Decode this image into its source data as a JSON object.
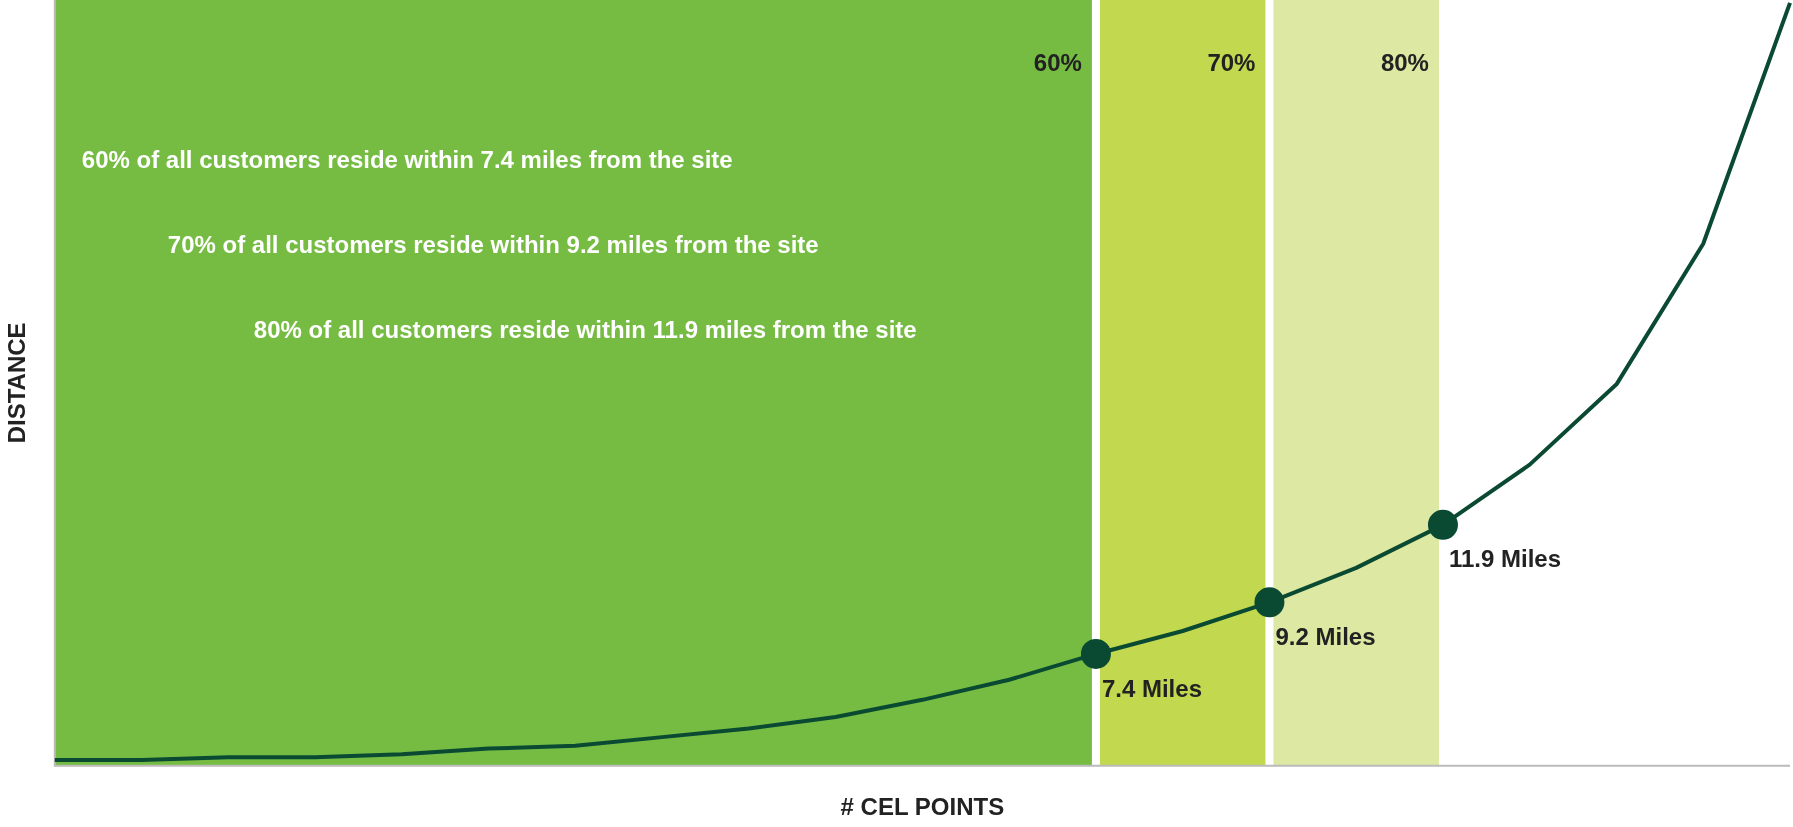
{
  "chart_data": {
    "type": "line",
    "xlabel": "# CEL POINTS",
    "ylabel": "DISTANCE",
    "ylim": [
      3.5,
      30.2
    ],
    "grid": false,
    "legend": false,
    "categories": [
      null,
      null,
      null,
      null,
      null,
      null,
      null,
      null,
      null,
      null,
      null,
      null,
      null,
      null,
      null,
      null,
      null,
      null,
      null,
      null,
      null
    ],
    "series": [
      {
        "color": "#0b4a32",
        "values": [
          3.7,
          3.7,
          3.8,
          3.8,
          3.9,
          4.1,
          4.2,
          4.5,
          4.8,
          5.2,
          5.8,
          6.5,
          7.4,
          8.2,
          9.2,
          10.4,
          11.9,
          14,
          16.8,
          21.7,
          30.1
        ],
        "value_labels": [
          null,
          null,
          null,
          null,
          null,
          null,
          null,
          null,
          null,
          null,
          null,
          null,
          "7.4 Miles",
          null,
          "9.2 Miles",
          null,
          "11.9 Miles",
          null,
          null,
          null,
          null
        ]
      }
    ],
    "annotations": [
      "60%",
      "70%",
      "80%",
      "60% of all customers reside within 7.4 miles from the site",
      "70% of all customers reside within 9.2 miles from the site",
      "80% of all customers reside within 11.9 miles from the site"
    ]
  }
}
